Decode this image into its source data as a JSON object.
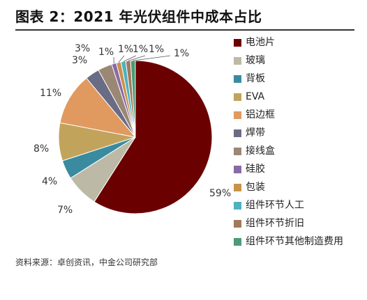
{
  "header": {
    "title": "图表 2：2021 年光伏组件中成本占比"
  },
  "chart_data": {
    "type": "pie",
    "categories": [
      "电池片",
      "玻璃",
      "背板",
      "EVA",
      "铝边框",
      "焊带",
      "接线盒",
      "硅胶",
      "包装",
      "组件环节人工",
      "组件环节折旧",
      "组件环节其他制造费用"
    ],
    "values": [
      59,
      7,
      4,
      8,
      11,
      3,
      3,
      1,
      1,
      1,
      1,
      1
    ],
    "labels": [
      "59%",
      "7%",
      "4%",
      "8%",
      "11%",
      "3%",
      "3%",
      "1%",
      "1%",
      "1%",
      "1%",
      "1%"
    ],
    "colors": [
      "#6b0000",
      "#bcbaa6",
      "#3a8ba0",
      "#c2a35c",
      "#e0995f",
      "#6a6c86",
      "#9a8774",
      "#8a6aa6",
      "#c8924a",
      "#4fb0c0",
      "#a07a5a",
      "#4c9a76"
    ],
    "legend_position": "right"
  },
  "footer": {
    "source": "资料来源：卓创资讯，中金公司研究部"
  }
}
